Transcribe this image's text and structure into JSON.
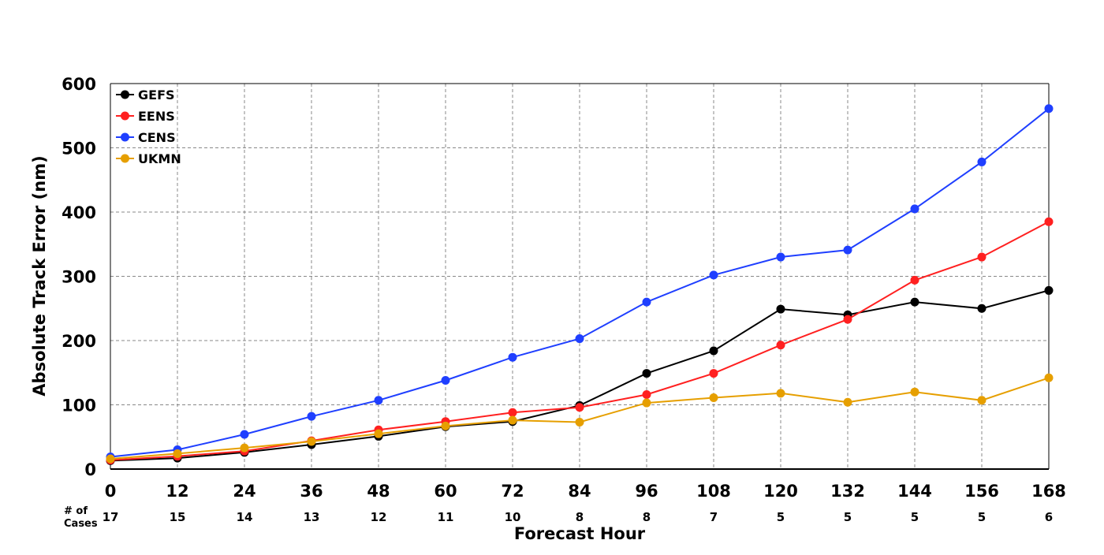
{
  "chart_data": {
    "type": "line",
    "xlabel": "Forecast Hour",
    "ylabel": "Absolute Track Error (nm)",
    "x": [
      0,
      12,
      24,
      36,
      48,
      60,
      72,
      84,
      96,
      108,
      120,
      132,
      144,
      156,
      168
    ],
    "xlim": [
      0,
      168
    ],
    "ylim": [
      0,
      600
    ],
    "x_ticks": [
      0,
      12,
      24,
      36,
      48,
      60,
      72,
      84,
      96,
      108,
      120,
      132,
      144,
      156,
      168
    ],
    "y_ticks": [
      0,
      100,
      200,
      300,
      400,
      500,
      600
    ],
    "grid": true,
    "legend_position": "top-left",
    "cases_heading_line1": "# of",
    "cases_heading_line2": "Cases",
    "cases": [
      17,
      15,
      14,
      13,
      12,
      11,
      10,
      8,
      8,
      7,
      5,
      5,
      5,
      5,
      6
    ],
    "series": [
      {
        "name": "GEFS",
        "color": "#000000",
        "values": [
          13,
          17,
          26,
          38,
          51,
          66,
          74,
          99,
          149,
          184,
          249,
          240,
          260,
          250,
          278
        ]
      },
      {
        "name": "EENS",
        "color": "#ff2020",
        "values": [
          14,
          20,
          28,
          44,
          61,
          74,
          88,
          96,
          116,
          149,
          193,
          233,
          294,
          330,
          385
        ]
      },
      {
        "name": "CENS",
        "color": "#1f3fff",
        "values": [
          19,
          30,
          54,
          82,
          107,
          138,
          174,
          203,
          260,
          302,
          330,
          341,
          405,
          478,
          561
        ]
      },
      {
        "name": "UKMN",
        "color": "#e69f00",
        "values": [
          16,
          24,
          33,
          43,
          55,
          67,
          76,
          73,
          103,
          111,
          118,
          104,
          120,
          107,
          142
        ]
      }
    ]
  }
}
